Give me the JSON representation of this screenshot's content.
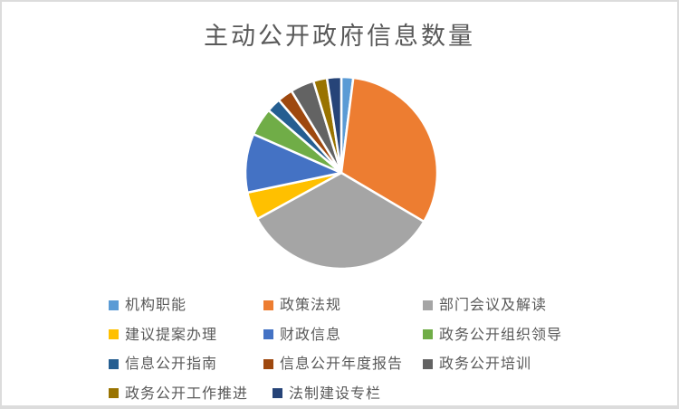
{
  "chart": {
    "background": "#FFFFFF",
    "border_color": "#DCDCDC",
    "title_color": "#595959",
    "legend_text_color": "#595959"
  },
  "chart_data": {
    "type": "pie",
    "title": "主动公开政府信息数量",
    "legend_position": "bottom",
    "start_angle_deg": 0,
    "slice_border_color": "#FFFFFF",
    "categories": [
      "机构职能",
      "政策法规",
      "部门会议及解读",
      "建议提案办理",
      "财政信息",
      "政务公开组织领导",
      "信息公开指南",
      "信息公开年度报告",
      "政务公开培训",
      "政务公开工作推进",
      "法制建设专栏"
    ],
    "values": [
      2.0,
      31.5,
      33.5,
      4.7,
      9.9,
      4.7,
      2.4,
      2.6,
      4.0,
      2.3,
      2.4
    ],
    "unit": "percent",
    "colors": [
      "#5B9BD5",
      "#ED7D31",
      "#A5A5A5",
      "#FFC000",
      "#4472C4",
      "#70AD47",
      "#255E91",
      "#9E480E",
      "#636363",
      "#997300",
      "#264478"
    ]
  }
}
